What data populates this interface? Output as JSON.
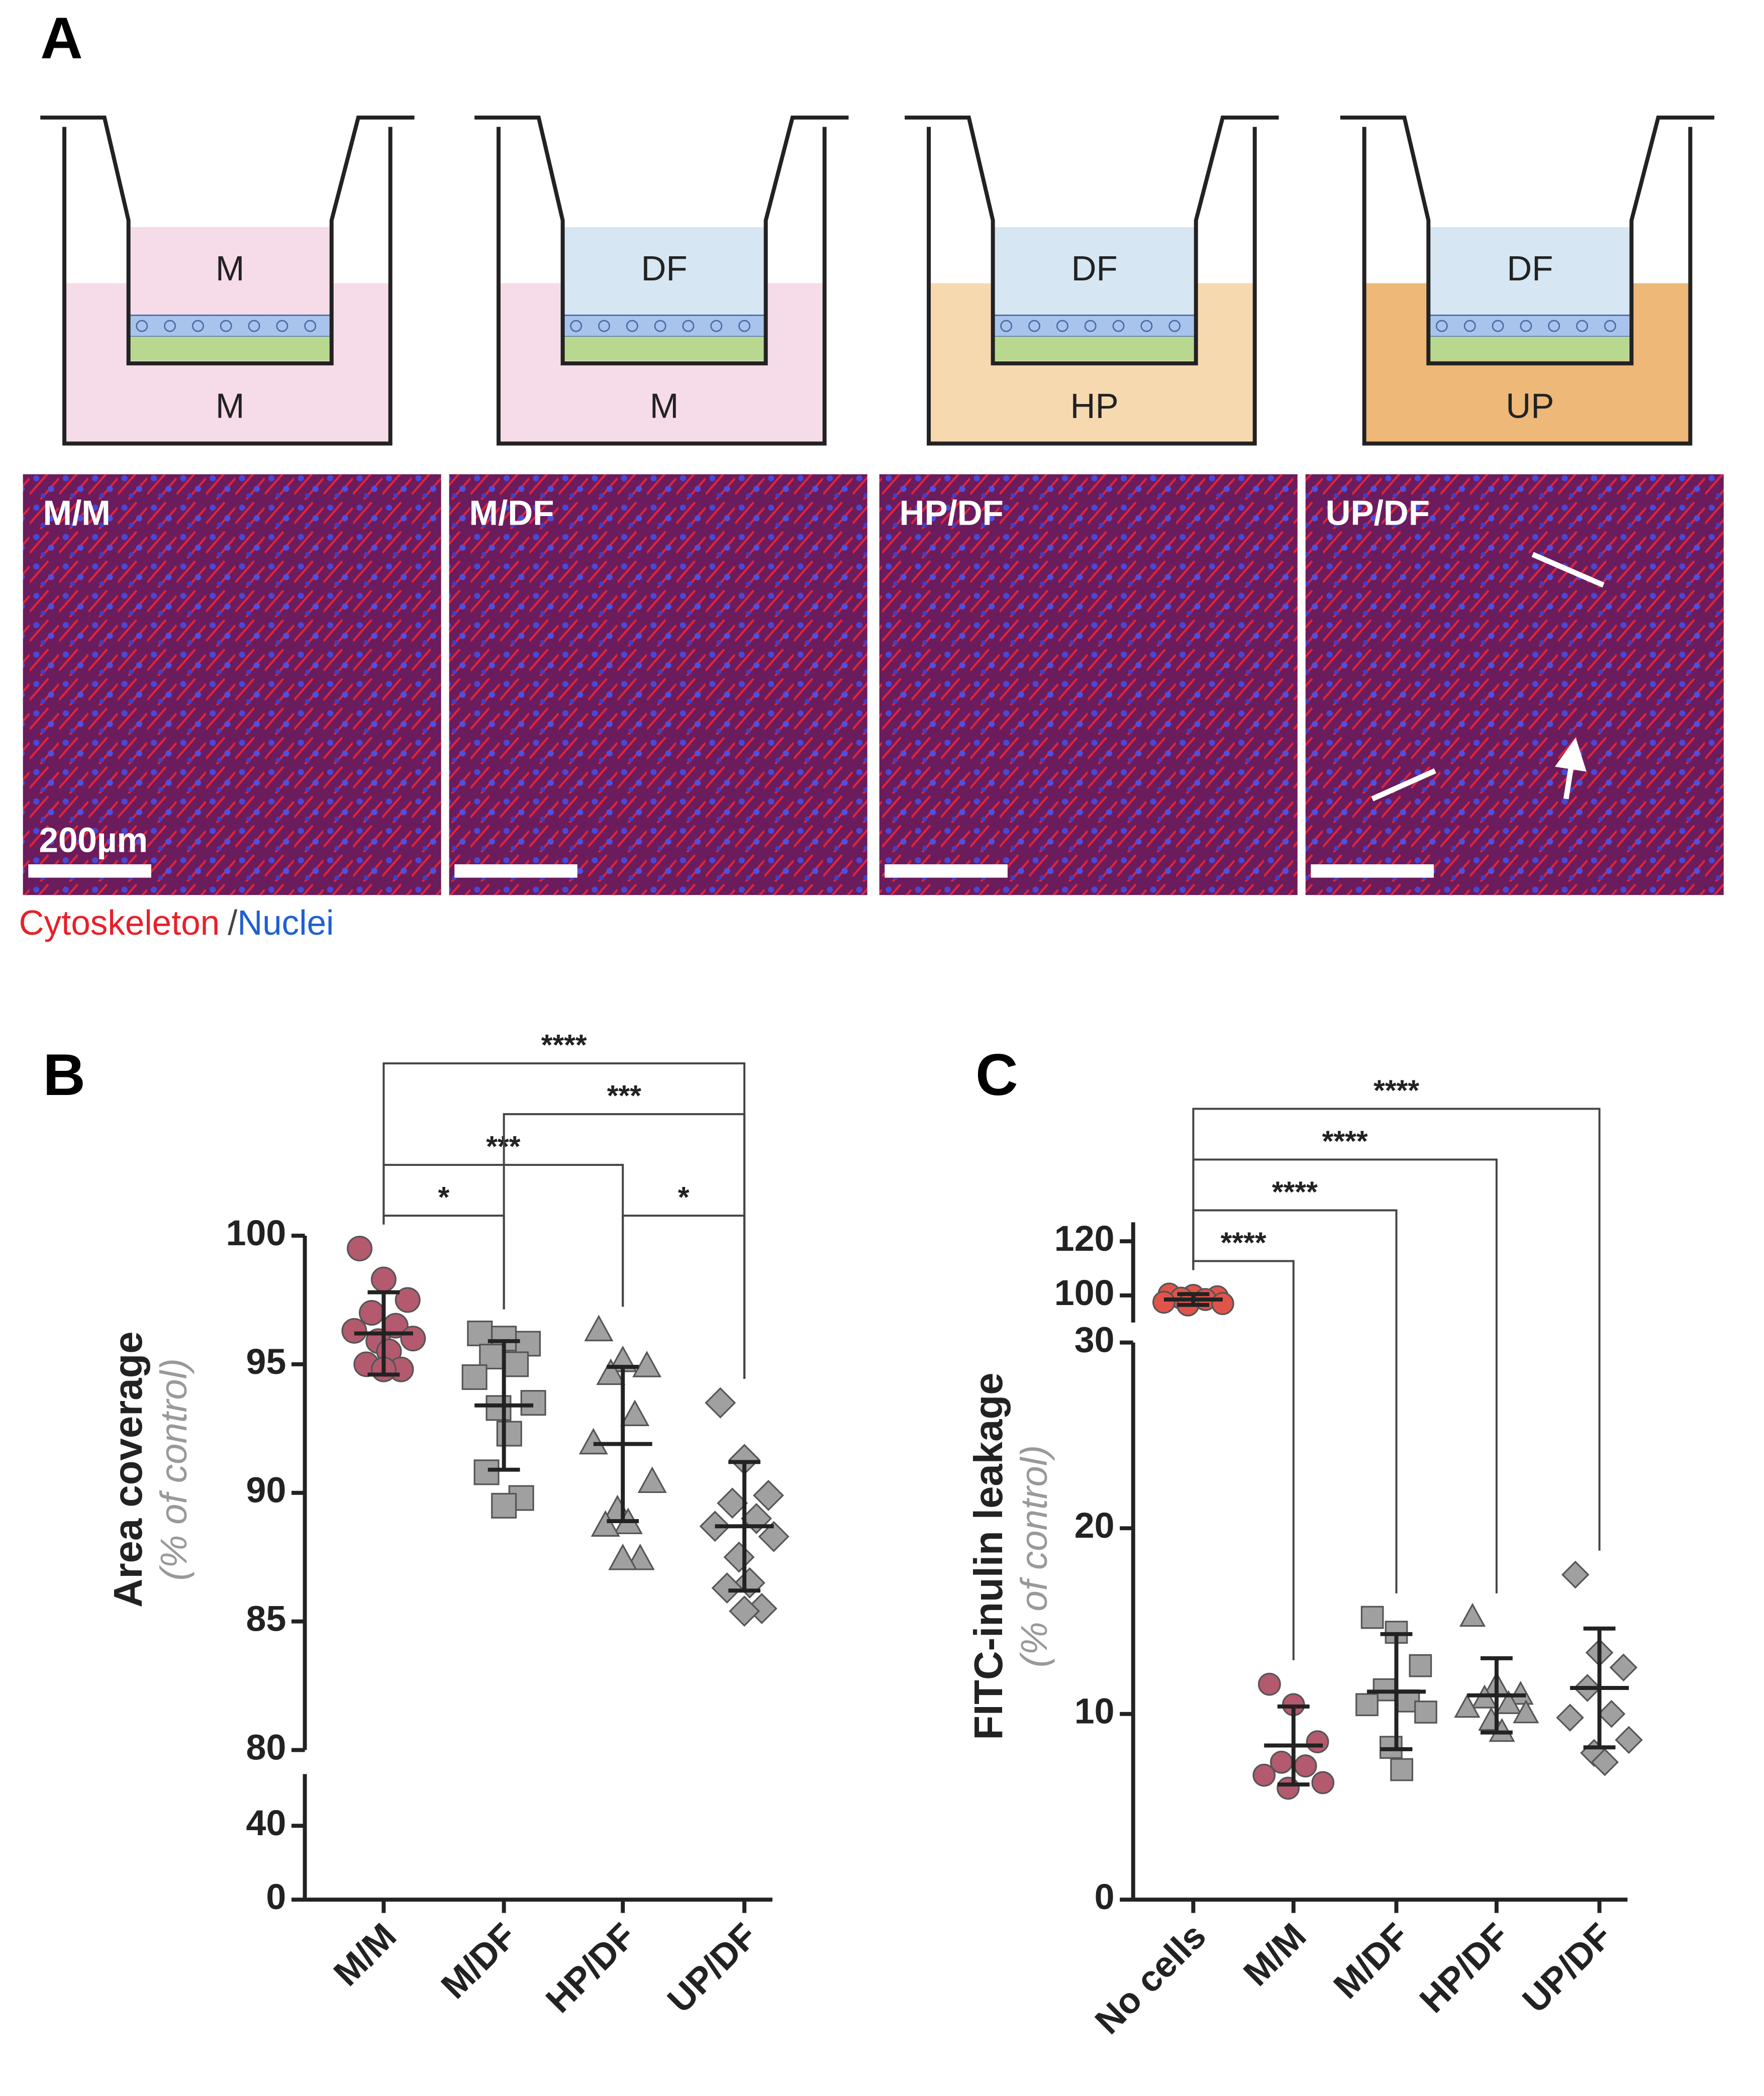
{
  "panels": {
    "a": "A",
    "b": "B",
    "c": "C"
  },
  "diagrams": [
    {
      "top": "M",
      "bottom": "M"
    },
    {
      "top": "DF",
      "bottom": "M"
    },
    {
      "top": "DF",
      "bottom": "HP"
    },
    {
      "top": "DF",
      "bottom": "UP"
    }
  ],
  "images": [
    "M/M",
    "M/DF",
    "HP/DF",
    "UP/DF"
  ],
  "scale_bar": "200µm",
  "stain_legend": {
    "cytoskeleton": "Cytoskeleton",
    "separator": "/",
    "nuclei": "Nuclei"
  },
  "chart_data": [
    {
      "type": "dot",
      "ylabel": "Area coverage",
      "ylabel_note": "(% of control)",
      "categories": [
        "M/M",
        "M/DF",
        "HP/DF",
        "UP/DF"
      ],
      "markers": [
        "circle",
        "square",
        "triangle",
        "diamond"
      ],
      "colors": [
        "#b45a6e",
        "#a0a0a0",
        "#a0a0a0",
        "#a0a0a0"
      ],
      "points": [
        [
          99.5,
          98.3,
          97.5,
          97.0,
          96.5,
          96.3,
          96.0,
          95.9,
          95.5,
          95.0,
          94.8,
          94.8
        ],
        [
          96.2,
          96.0,
          95.8,
          95.3,
          95.0,
          94.5,
          93.5,
          93.3,
          92.3,
          90.8,
          89.8,
          89.5
        ],
        [
          96.3,
          95.1,
          94.9,
          94.6,
          93.0,
          91.9,
          90.4,
          89.3,
          88.8,
          88.7,
          87.4,
          87.4
        ],
        [
          93.5,
          91.3,
          89.9,
          89.6,
          89.0,
          88.7,
          88.3,
          87.5,
          86.5,
          86.3,
          85.5,
          85.4
        ]
      ],
      "means": [
        96.2,
        93.4,
        91.9,
        88.7
      ],
      "errors": [
        1.6,
        2.5,
        3.0,
        2.5
      ],
      "y_segments": [
        {
          "ylim": [
            0,
            68
          ],
          "yticks": [
            0,
            40
          ]
        },
        {
          "ylim": [
            80,
            100
          ],
          "yticks": [
            80,
            85,
            90,
            95,
            100
          ]
        }
      ],
      "comparisons": [
        {
          "pair": [
            0,
            1
          ],
          "label": "*"
        },
        {
          "pair": [
            2,
            3
          ],
          "label": "*"
        },
        {
          "pair": [
            0,
            2
          ],
          "label": "***"
        },
        {
          "pair": [
            1,
            3
          ],
          "label": "***"
        },
        {
          "pair": [
            0,
            3
          ],
          "label": "****"
        }
      ]
    },
    {
      "type": "dot",
      "ylabel": "FITC-inulin leakage",
      "ylabel_note": "(% of control)",
      "categories": [
        "No cells",
        "M/M",
        "M/DF",
        "HP/DF",
        "UP/DF"
      ],
      "markers": [
        "circle",
        "circle",
        "square",
        "triangle",
        "diamond"
      ],
      "colors": [
        "#e0544c",
        "#b45a6e",
        "#a0a0a0",
        "#a0a0a0",
        "#a0a0a0"
      ],
      "points": [
        [
          100.5,
          100,
          99.5,
          99,
          98.5,
          97.5,
          97,
          96.5
        ],
        [
          11.6,
          10.5,
          8.5,
          7.4,
          7.2,
          6.7,
          6.3,
          6.0
        ],
        [
          15.2,
          14.4,
          12.6,
          11.3,
          10.7,
          10.5,
          10.1,
          8.2,
          7.0
        ],
        [
          15.2,
          11.5,
          11.0,
          10.8,
          10.5,
          10.3,
          10.0,
          9.6,
          9.0
        ],
        [
          17.5,
          13.3,
          12.5,
          11.4,
          10.0,
          9.8,
          8.6,
          7.9,
          7.4
        ]
      ],
      "means": [
        98.5,
        8.3,
        11.2,
        11.0,
        11.4
      ],
      "errors": [
        2.0,
        2.1,
        3.1,
        2.0,
        3.2
      ],
      "y_segments": [
        {
          "ylim": [
            0,
            30
          ],
          "yticks": [
            0,
            10,
            20,
            30
          ]
        },
        {
          "ylim": [
            90,
            127
          ],
          "yticks": [
            100,
            120
          ]
        }
      ],
      "comparisons": [
        {
          "pair": [
            0,
            1
          ],
          "label": "****"
        },
        {
          "pair": [
            0,
            2
          ],
          "label": "****"
        },
        {
          "pair": [
            0,
            3
          ],
          "label": "****"
        },
        {
          "pair": [
            0,
            4
          ],
          "label": "****"
        }
      ]
    }
  ]
}
